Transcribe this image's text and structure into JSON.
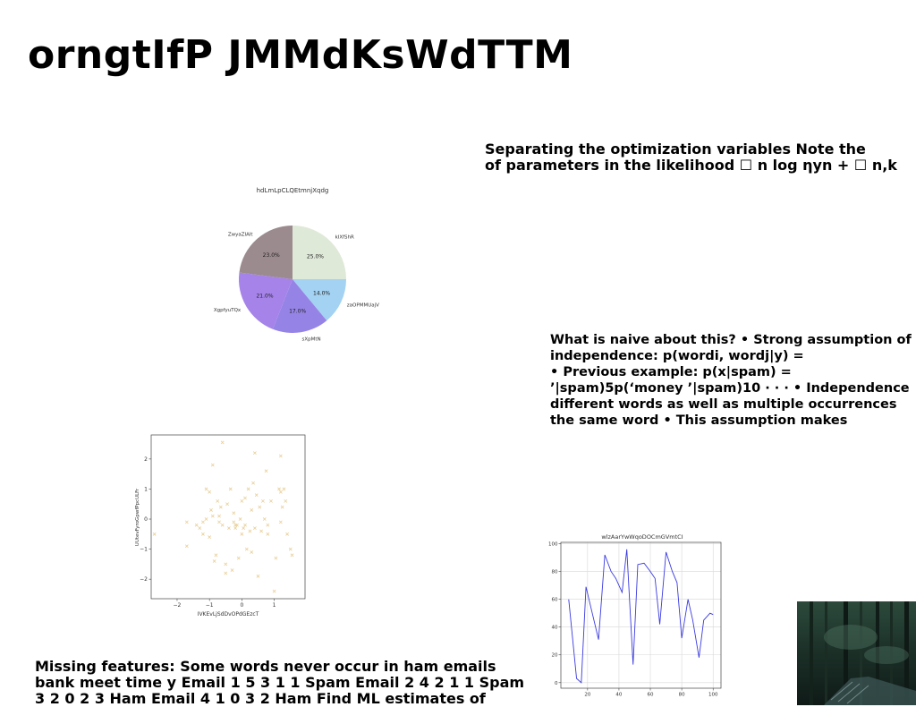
{
  "slide": {
    "title": "orngtIfP JMMdKsWdTTM",
    "text_top_right": [
      "Separating the optimization variables Note the",
      "of parameters in the likelihood ☐ n log ηyn + ☐ n,k"
    ],
    "text_mid_right": [
      "What is naive about this? • Strong assumption of",
      "independence: p(wordi, wordj|y) =",
      "• Previous example: p(x|spam) =",
      "’|spam)5p(‘money ’|spam)10 · · · • Independence",
      "different words as well as multiple occurrences",
      "the same word • This assumption makes"
    ],
    "text_bottom_left": [
      "Missing features: Some words never occur in ham emails",
      "bank meet time y Email 1 5 3 1 1 Spam Email 2 4 2 1 1 Spam",
      "3 2 0 2 3 Ham Email 4 1 0 3 2 Ham Find ML estimates of"
    ]
  },
  "chart_data": [
    {
      "type": "pie",
      "title": "hdLmLpCLQEtmnjXqdg",
      "slices": [
        {
          "label": "kIXfShR",
          "value": 25.0,
          "pct_label": "25.0%",
          "color": "#dfe9d8"
        },
        {
          "label": "zaOPMMUajV",
          "value": 14.0,
          "pct_label": "14.0%",
          "color": "#a3d2f2"
        },
        {
          "label": "sXpMtN",
          "value": 17.0,
          "pct_label": "17.0%",
          "color": "#9683e6"
        },
        {
          "label": "XgpfyuTQx",
          "value": 21.0,
          "pct_label": "21.0%",
          "color": "#a583e9"
        },
        {
          "label": "ZwyaZIAlt",
          "value": 23.0,
          "pct_label": "23.0%",
          "color": "#9b8a8e"
        }
      ]
    },
    {
      "type": "scatter",
      "xlabel": "IVKEvLjSdDvOPdGEzcT",
      "ylabel": "UUtevFyroGpwfPpcULFr",
      "xlim": [
        -2.8,
        1.95
      ],
      "ylim": [
        -2.65,
        2.8
      ],
      "xticks": [
        -2,
        -1,
        0,
        1
      ],
      "yticks": [
        -2,
        -1,
        0,
        1,
        2
      ],
      "marker": "x",
      "color": "#e8cf97",
      "points": [
        [
          -2.7,
          -0.5
        ],
        [
          -1.7,
          -0.1
        ],
        [
          -1.7,
          -0.9
        ],
        [
          -1.4,
          -0.2
        ],
        [
          -1.3,
          -0.3
        ],
        [
          -1.2,
          -0.1
        ],
        [
          -1.2,
          -0.5
        ],
        [
          -1.1,
          1.0
        ],
        [
          -1.1,
          0.0
        ],
        [
          -1.0,
          -0.6
        ],
        [
          -1.0,
          0.9
        ],
        [
          -0.95,
          0.3
        ],
        [
          -0.9,
          0.1
        ],
        [
          -0.9,
          1.8
        ],
        [
          -0.85,
          -1.4
        ],
        [
          -0.8,
          -1.2
        ],
        [
          -0.75,
          0.6
        ],
        [
          -0.7,
          -0.1
        ],
        [
          -0.65,
          0.4
        ],
        [
          -0.6,
          2.55
        ],
        [
          -0.6,
          -0.2
        ],
        [
          -0.5,
          -1.5
        ],
        [
          -0.5,
          -1.8
        ],
        [
          -0.45,
          0.5
        ],
        [
          -0.4,
          -0.3
        ],
        [
          -0.35,
          1.0
        ],
        [
          -0.3,
          -1.7
        ],
        [
          -0.25,
          0.2
        ],
        [
          -0.25,
          -0.1
        ],
        [
          -0.2,
          -0.3
        ],
        [
          -0.15,
          -0.2
        ],
        [
          -0.1,
          -1.3
        ],
        [
          -0.05,
          0.0
        ],
        [
          0.0,
          0.6
        ],
        [
          0.0,
          -0.5
        ],
        [
          0.05,
          -0.3
        ],
        [
          0.1,
          0.7
        ],
        [
          0.1,
          -0.2
        ],
        [
          0.15,
          -1.0
        ],
        [
          0.2,
          1.0
        ],
        [
          0.25,
          -0.4
        ],
        [
          0.3,
          0.3
        ],
        [
          0.3,
          -1.1
        ],
        [
          0.35,
          1.2
        ],
        [
          0.4,
          2.2
        ],
        [
          0.4,
          -0.3
        ],
        [
          0.45,
          0.8
        ],
        [
          0.5,
          -1.9
        ],
        [
          0.55,
          0.4
        ],
        [
          0.6,
          -0.4
        ],
        [
          0.65,
          0.6
        ],
        [
          0.7,
          0.0
        ],
        [
          0.75,
          1.6
        ],
        [
          0.8,
          -0.2
        ],
        [
          0.9,
          0.6
        ],
        [
          1.0,
          -2.4
        ],
        [
          1.05,
          -1.3
        ],
        [
          1.15,
          1.0
        ],
        [
          1.2,
          2.1
        ],
        [
          1.2,
          -0.1
        ],
        [
          1.25,
          0.4
        ],
        [
          1.3,
          1.0
        ],
        [
          1.35,
          0.6
        ],
        [
          1.4,
          -0.5
        ],
        [
          1.5,
          -1.0
        ],
        [
          1.55,
          -1.2
        ],
        [
          1.2,
          0.9
        ],
        [
          -0.2,
          -0.2
        ],
        [
          0.8,
          -0.5
        ],
        [
          -0.7,
          0.1
        ]
      ]
    },
    {
      "type": "line",
      "title": "wlzAarYwWqoDOCmGVmtCI",
      "xlim": [
        3,
        105
      ],
      "ylim": [
        -4,
        101
      ],
      "xticks": [
        20,
        40,
        60,
        80,
        100
      ],
      "yticks": [
        0,
        20,
        40,
        60,
        80,
        100
      ],
      "grid": true,
      "color": "#3a3ae0",
      "x": [
        8,
        13,
        16,
        19,
        23,
        27,
        31,
        35,
        38,
        42,
        45,
        49,
        52,
        56,
        60,
        63,
        66,
        70,
        74,
        77,
        80,
        84,
        87,
        91,
        94,
        98,
        100
      ],
      "y": [
        60,
        3,
        0,
        69,
        50,
        31,
        92,
        80,
        75,
        65,
        96,
        13,
        85,
        86,
        80,
        75,
        42,
        94,
        80,
        72,
        32,
        60,
        45,
        18,
        45,
        50,
        49
      ]
    }
  ]
}
